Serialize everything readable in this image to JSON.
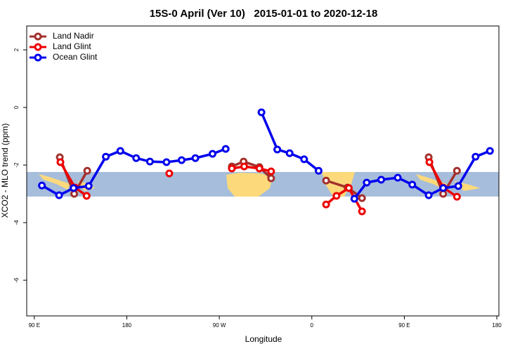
{
  "chart_data": {
    "type": "line",
    "title": "15S-0 April (Ver 10)   2015-01-01 to 2020-12-18",
    "x_label": "Longitude",
    "y_label": "XCO2 - MLO trend (ppm)",
    "xlim": [
      82.6,
      542.0
    ],
    "ylim": [
      -7.24,
      2.83
    ],
    "xticks": [
      {
        "value": 90,
        "label": "90 E"
      },
      {
        "value": 180,
        "label": "180"
      },
      {
        "value": 270,
        "label": "90 W"
      },
      {
        "value": 360,
        "label": "0"
      },
      {
        "value": 450,
        "label": "90 E"
      },
      {
        "value": 540,
        "label": "180"
      }
    ],
    "yticks": [
      2,
      0,
      -2,
      -4,
      -6
    ],
    "legend_position": "top-left",
    "series": [
      {
        "name": "Land Nadir",
        "color": "#a3302c",
        "x": [
          114.8,
          128.8,
          141.5,
          null,
          282.2,
          293.6,
          309.0,
          320.4,
          null,
          373.9,
          394.7,
          408.8,
          null,
          473.7,
          487.8,
          501.2
        ],
        "values": [
          -1.73,
          -3.0,
          -2.2,
          null,
          -2.05,
          -1.88,
          -2.07,
          -2.46,
          null,
          -2.54,
          -2.78,
          -3.15,
          null,
          -1.73,
          -3.0,
          -2.2
        ]
      },
      {
        "name": "Land Glint",
        "color": "#ee0000",
        "x": [
          115.4,
          129.5,
          140.9,
          null,
          221.3,
          null,
          282.2,
          294.2,
          309.0,
          320.4,
          null,
          373.9,
          384.0,
          396.0,
          408.8,
          null,
          474.4,
          487.8,
          501.2
        ],
        "values": [
          -1.9,
          -2.78,
          -3.07,
          null,
          -2.29,
          null,
          -2.12,
          -2.05,
          -2.12,
          -2.22,
          null,
          -3.37,
          -3.07,
          -2.8,
          -3.61,
          null,
          -1.9,
          -2.78,
          -3.1
        ]
      },
      {
        "name": "Ocean Glint",
        "color": "#0000ee",
        "x": [
          97.4,
          114.1,
          128.2,
          142.9,
          159.6,
          173.7,
          189.1,
          202.5,
          218.6,
          233.3,
          246.7,
          263.4,
          276.2,
          null,
          311.0,
          326.4,
          338.4,
          352.5,
          366.6,
          null,
          401.4,
          413.4,
          427.5,
          443.6,
          457.7,
          473.7,
          487.8,
          502.5,
          519.3,
          533.3
        ],
        "values": [
          -2.71,
          -3.05,
          -2.8,
          -2.73,
          -1.71,
          -1.51,
          -1.76,
          -1.88,
          -1.9,
          -1.83,
          -1.76,
          -1.61,
          -1.44,
          null,
          -0.17,
          -1.46,
          -1.59,
          -1.8,
          -2.2,
          null,
          -3.17,
          -2.61,
          -2.51,
          -2.44,
          -2.68,
          -3.05,
          -2.8,
          -2.73,
          -1.71,
          -1.51
        ]
      }
    ]
  }
}
